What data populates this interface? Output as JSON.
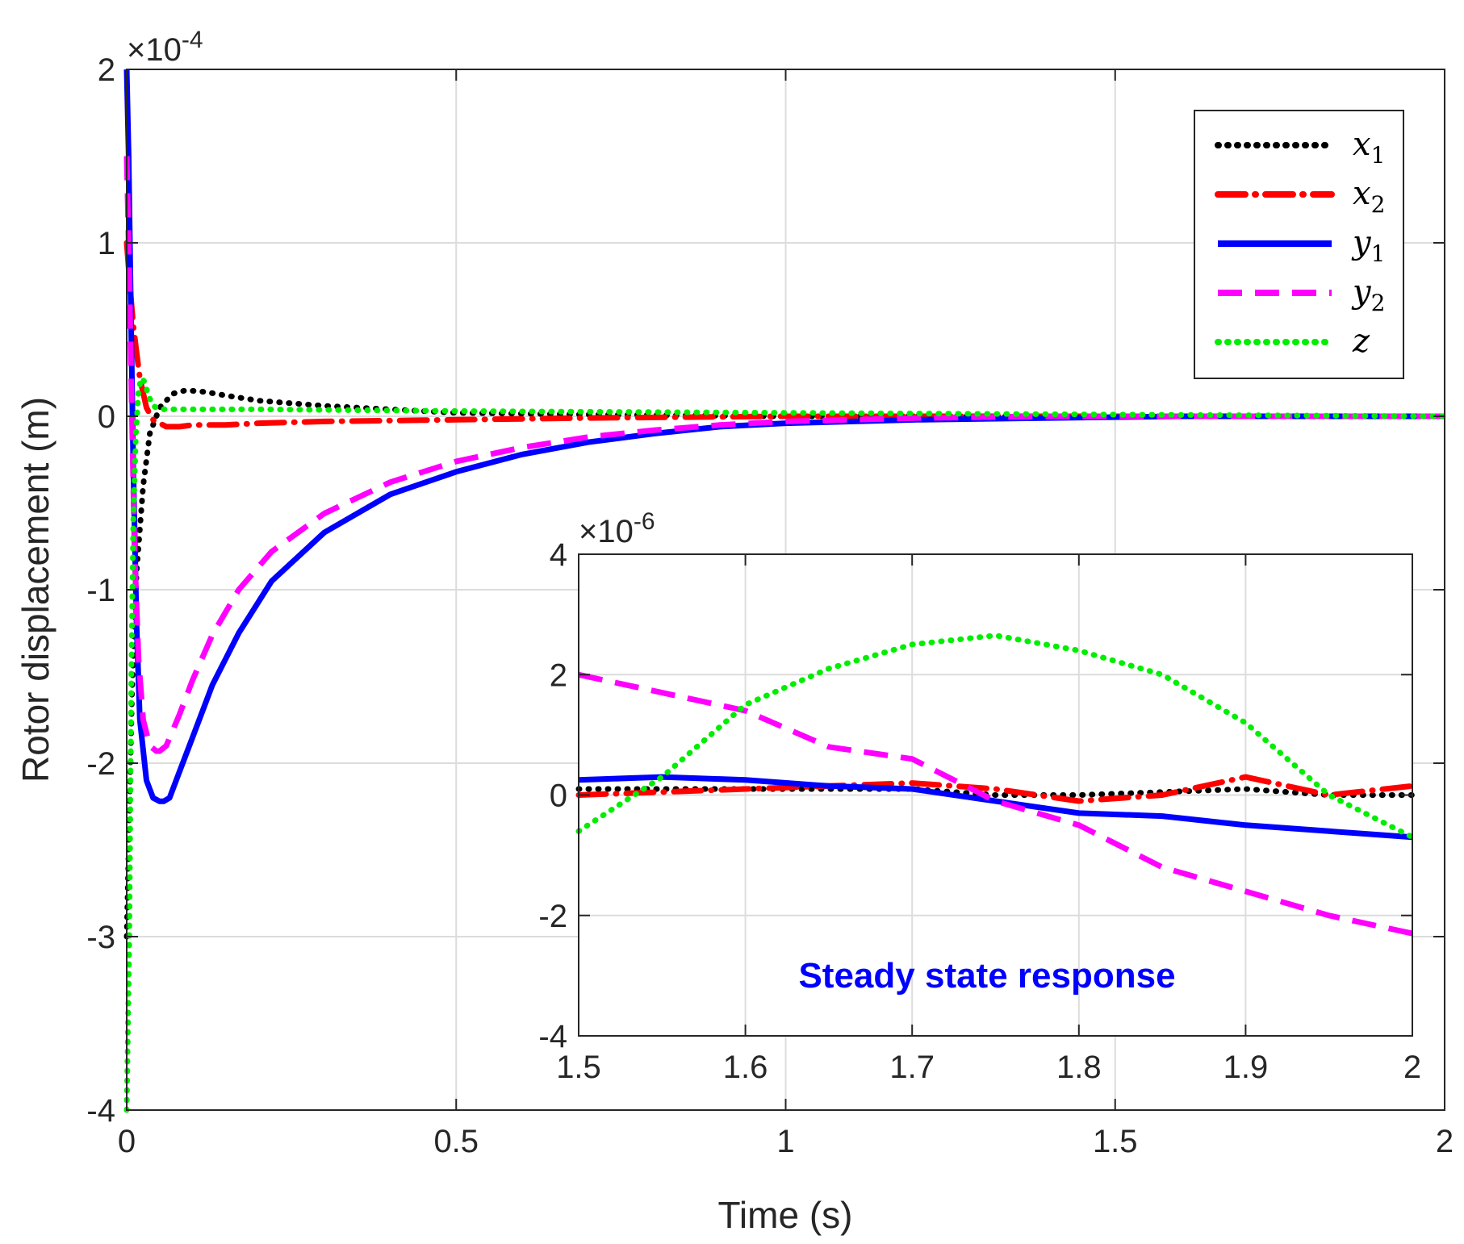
{
  "chart_data": [
    {
      "type": "line",
      "title": "",
      "xlabel": "Time (s)",
      "ylabel": "Rotor displacement (m)",
      "xlim": [
        0,
        2
      ],
      "ylim": [
        -4,
        2
      ],
      "y_exponent_label": "×10",
      "y_exponent": "-4",
      "y_scale": 0.0001,
      "xticks": [
        0,
        0.5,
        1,
        1.5,
        2
      ],
      "xtick_labels": [
        "0",
        "0.5",
        "1",
        "1.5",
        "2"
      ],
      "yticks": [
        -4,
        -3,
        -2,
        -1,
        0,
        1,
        2
      ],
      "ytick_labels": [
        "-4",
        "-3",
        "-2",
        "-1",
        "0",
        "1",
        "2"
      ],
      "grid": true,
      "legend_position": "top-right",
      "series": [
        {
          "name": "x1",
          "base": "x",
          "sub": "1",
          "color": "#000000",
          "dash": "dot",
          "x": [
            0,
            0.003,
            0.008,
            0.015,
            0.025,
            0.035,
            0.05,
            0.07,
            0.09,
            0.12,
            0.15,
            0.2,
            0.3,
            0.4,
            0.5,
            0.7,
            1.0,
            1.5,
            2.0
          ],
          "y": [
            -3.0,
            -2.5,
            -1.6,
            -0.9,
            -0.4,
            -0.1,
            0.05,
            0.13,
            0.15,
            0.14,
            0.12,
            0.09,
            0.06,
            0.04,
            0.02,
            0.01,
            0.0,
            0.0,
            0.0
          ]
        },
        {
          "name": "x2",
          "base": "x",
          "sub": "2",
          "color": "#ff0000",
          "dash": "dashdot",
          "x": [
            0,
            0.005,
            0.01,
            0.015,
            0.02,
            0.03,
            0.04,
            0.06,
            0.08,
            0.1,
            0.15,
            0.2,
            0.3,
            0.5,
            0.7,
            1.0,
            1.5,
            2.0
          ],
          "y": [
            1.0,
            0.75,
            0.52,
            0.37,
            0.22,
            0.05,
            -0.02,
            -0.06,
            -0.06,
            -0.05,
            -0.05,
            -0.04,
            -0.03,
            -0.02,
            -0.01,
            0.0,
            0.0,
            0.0
          ]
        },
        {
          "name": "y1",
          "base": "y",
          "sub": "1",
          "color": "#0000ff",
          "dash": "solid",
          "x": [
            0,
            0.003,
            0.006,
            0.01,
            0.015,
            0.02,
            0.03,
            0.04,
            0.05,
            0.056,
            0.065,
            0.08,
            0.1,
            0.13,
            0.17,
            0.22,
            0.3,
            0.4,
            0.5,
            0.6,
            0.7,
            0.8,
            0.9,
            1.0,
            1.2,
            1.4,
            1.6,
            1.8,
            2.0
          ],
          "y": [
            2.0,
            1.5,
            0.7,
            -0.3,
            -1.2,
            -1.75,
            -2.1,
            -2.2,
            -2.22,
            -2.22,
            -2.2,
            -2.05,
            -1.85,
            -1.55,
            -1.25,
            -0.95,
            -0.67,
            -0.45,
            -0.32,
            -0.22,
            -0.15,
            -0.1,
            -0.06,
            -0.04,
            -0.02,
            -0.01,
            0.0,
            0.0,
            0.0
          ]
        },
        {
          "name": "y2",
          "base": "y",
          "sub": "2",
          "color": "#ff00ff",
          "dash": "dash",
          "x": [
            0,
            0.004,
            0.008,
            0.012,
            0.018,
            0.025,
            0.035,
            0.045,
            0.05,
            0.06,
            0.08,
            0.1,
            0.13,
            0.17,
            0.22,
            0.3,
            0.4,
            0.5,
            0.6,
            0.7,
            0.8,
            0.9,
            1.0,
            1.2,
            1.4,
            1.6,
            1.8,
            2.0
          ],
          "y": [
            1.5,
            0.8,
            0.0,
            -0.8,
            -1.4,
            -1.75,
            -1.9,
            -1.93,
            -1.93,
            -1.9,
            -1.72,
            -1.52,
            -1.26,
            -1.0,
            -0.78,
            -0.56,
            -0.38,
            -0.26,
            -0.18,
            -0.12,
            -0.08,
            -0.05,
            -0.03,
            -0.01,
            0.0,
            0.0,
            0.0,
            0.0
          ]
        },
        {
          "name": "z",
          "base": "z",
          "sub": "",
          "color": "#00ee00",
          "dash": "dot",
          "x": [
            0,
            0.004,
            0.007,
            0.01,
            0.014,
            0.018,
            0.022,
            0.027,
            0.033,
            0.04,
            0.05,
            0.07,
            0.1,
            0.2,
            0.5,
            1.0,
            1.5,
            2.0
          ],
          "y": [
            -4.0,
            -3.0,
            -1.5,
            -0.6,
            -0.1,
            0.15,
            0.22,
            0.2,
            0.12,
            0.06,
            0.04,
            0.04,
            0.04,
            0.04,
            0.03,
            0.02,
            0.01,
            0.0
          ]
        }
      ]
    },
    {
      "type": "line",
      "title": "",
      "annotation": "Steady state response",
      "annotation_color": "#0000ff",
      "xlim": [
        1.5,
        2
      ],
      "ylim": [
        -4,
        4
      ],
      "y_exponent_label": "×10",
      "y_exponent": "-6",
      "y_scale": 1e-06,
      "xticks": [
        1.5,
        1.6,
        1.7,
        1.8,
        1.9,
        2
      ],
      "xtick_labels": [
        "1.5",
        "1.6",
        "1.7",
        "1.8",
        "1.9",
        "2"
      ],
      "yticks": [
        -4,
        -2,
        0,
        2,
        4
      ],
      "ytick_labels": [
        "-4",
        "-2",
        "0",
        "2",
        "4"
      ],
      "grid": true,
      "series": [
        {
          "name": "x1",
          "color": "#000000",
          "dash": "dot",
          "x": [
            1.5,
            1.55,
            1.6,
            1.65,
            1.7,
            1.75,
            1.8,
            1.85,
            1.9,
            1.95,
            2.0
          ],
          "y": [
            0.1,
            0.1,
            0.1,
            0.1,
            0.1,
            0.0,
            0.0,
            0.05,
            0.1,
            0.0,
            0.0
          ]
        },
        {
          "name": "x2",
          "color": "#ff0000",
          "dash": "dashdot",
          "x": [
            1.5,
            1.55,
            1.6,
            1.65,
            1.7,
            1.75,
            1.8,
            1.85,
            1.9,
            1.95,
            2.0
          ],
          "y": [
            0.0,
            0.05,
            0.1,
            0.15,
            0.2,
            0.1,
            -0.1,
            0.0,
            0.3,
            0.0,
            0.15
          ]
        },
        {
          "name": "y1",
          "color": "#0000ff",
          "dash": "solid",
          "x": [
            1.5,
            1.55,
            1.6,
            1.65,
            1.7,
            1.75,
            1.8,
            1.85,
            1.9,
            1.95,
            2.0
          ],
          "y": [
            0.25,
            0.3,
            0.25,
            0.15,
            0.1,
            -0.1,
            -0.3,
            -0.35,
            -0.5,
            -0.6,
            -0.7
          ]
        },
        {
          "name": "y2",
          "color": "#ff00ff",
          "dash": "dash",
          "x": [
            1.5,
            1.55,
            1.6,
            1.65,
            1.7,
            1.75,
            1.8,
            1.85,
            1.9,
            1.95,
            2.0
          ],
          "y": [
            2.0,
            1.7,
            1.4,
            0.8,
            0.6,
            -0.1,
            -0.5,
            -1.2,
            -1.6,
            -2.0,
            -2.3
          ]
        },
        {
          "name": "z",
          "color": "#00ee00",
          "dash": "dot",
          "x": [
            1.5,
            1.55,
            1.6,
            1.65,
            1.7,
            1.75,
            1.8,
            1.85,
            1.9,
            1.95,
            2.0
          ],
          "y": [
            -0.6,
            0.3,
            1.5,
            2.1,
            2.5,
            2.65,
            2.4,
            2.0,
            1.2,
            0.0,
            -0.7
          ]
        }
      ]
    }
  ]
}
